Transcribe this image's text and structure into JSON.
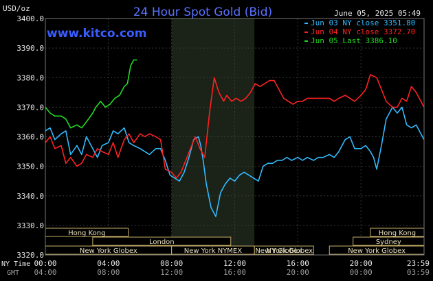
{
  "chart_data": {
    "type": "line",
    "title": "24 Hour Spot Gold (Bid)",
    "watermark": "www.kitco.com",
    "unit_label": "USD/oz",
    "date_label": "June 05, 2025 05:49",
    "ylim": [
      3320,
      3400
    ],
    "y_ticks": [
      "3400.0",
      "3390.0",
      "3380.0",
      "3370.0",
      "3360.0",
      "3350.0",
      "3340.0",
      "3330.0",
      "3320.0"
    ],
    "x_row_label_ny": "NY Time",
    "x_row_label_gmt": "GMT",
    "x_ticks_ny": [
      "00:00",
      "04:00",
      "08:00",
      "12:00",
      "16:00",
      "20:00",
      "23:59"
    ],
    "x_ticks_gmt": [
      "04:00",
      "08:00",
      "12:00",
      "16:00",
      "20:00",
      "00:00",
      "03:59"
    ],
    "shaded_period": [
      8.0,
      13.25
    ],
    "grid": true,
    "legend_position": "top-right",
    "sessions": [
      {
        "label": "Hong Kong",
        "row": 0,
        "start": 0.0,
        "end": 5.25
      },
      {
        "label": "Hong Kong",
        "row": 0,
        "start": 20.6,
        "end": 24.0
      },
      {
        "label": "London",
        "row": 1,
        "start": 3.0,
        "end": 11.75
      },
      {
        "label": "Sydney",
        "row": 1,
        "start": 19.5,
        "end": 24.0
      },
      {
        "label": "New York Globex",
        "row": 2,
        "start": 0.0,
        "end": 8.0
      },
      {
        "label": "New York NYMEX",
        "row": 2,
        "start": 8.0,
        "end": 13.25
      },
      {
        "label": "New York Globex",
        "row": 2,
        "start": 13.25,
        "end": 17.0
      },
      {
        "label": "NY Globex",
        "row": 2,
        "start": 13.25,
        "end": 17.0
      },
      {
        "label": "New York Globex",
        "row": 2,
        "start": 18.0,
        "end": 24.0
      }
    ],
    "series": [
      {
        "name": "Jun 03 NY close 3351.80",
        "color": "#33bbff",
        "x": [
          0,
          0.3,
          0.6,
          1,
          1.3,
          1.6,
          2,
          2.3,
          2.6,
          3,
          3.3,
          3.6,
          4,
          4.3,
          4.6,
          5,
          5.3,
          5.6,
          6,
          6.3,
          6.6,
          7,
          7.3,
          7.6,
          7.9,
          8.2,
          8.5,
          8.8,
          9.1,
          9.4,
          9.7,
          9.85,
          10,
          10.2,
          10.5,
          10.8,
          11.1,
          11.4,
          11.7,
          12,
          12.3,
          12.6,
          12.9,
          13.2,
          13.5,
          13.8,
          14.1,
          14.4,
          14.7,
          15,
          15.3,
          15.6,
          16,
          16.3,
          16.6,
          17,
          17.3,
          17.6,
          18,
          18.3,
          18.6,
          19,
          19.3,
          19.6,
          20,
          20.3,
          20.6,
          20.8,
          21,
          21.3,
          21.6,
          22,
          22.3,
          22.6,
          22.9,
          23.2,
          23.5,
          23.8,
          24
        ],
        "values": [
          3362,
          3363,
          3359,
          3361,
          3362,
          3354,
          3357,
          3354,
          3360,
          3356,
          3353,
          3357,
          3358,
          3362,
          3361,
          3363,
          3358,
          3357,
          3356,
          3355,
          3354,
          3356,
          3356,
          3352,
          3347,
          3346,
          3345,
          3348,
          3353,
          3359,
          3360,
          3357,
          3352,
          3344,
          3336,
          3333,
          3341,
          3344,
          3346,
          3345,
          3347,
          3348,
          3347,
          3346,
          3345,
          3350,
          3351,
          3351,
          3352,
          3352,
          3353,
          3352,
          3353,
          3352,
          3353,
          3352,
          3353,
          3353,
          3354,
          3353,
          3355,
          3359,
          3360,
          3356,
          3356,
          3357,
          3355,
          3353,
          3349,
          3357,
          3366,
          3370,
          3368,
          3370,
          3364,
          3363,
          3364,
          3361,
          3359
        ]
      },
      {
        "name": "Jun 04 NY close 3372.70",
        "color": "#ff2222",
        "x": [
          0,
          0.3,
          0.6,
          1,
          1.3,
          1.6,
          2,
          2.3,
          2.6,
          3,
          3.3,
          3.6,
          4,
          4.3,
          4.6,
          5,
          5.3,
          5.6,
          6,
          6.3,
          6.6,
          7,
          7.3,
          7.6,
          8,
          8.3,
          8.6,
          8.9,
          9.2,
          9.5,
          9.8,
          10.1,
          10.4,
          10.7,
          11,
          11.3,
          11.5,
          11.8,
          12.1,
          12.4,
          12.7,
          13,
          13.3,
          13.6,
          13.9,
          14.2,
          14.5,
          14.8,
          15.1,
          15.4,
          15.7,
          16,
          16.3,
          16.6,
          17,
          17.3,
          17.6,
          18,
          18.3,
          18.6,
          19,
          19.3,
          19.6,
          20,
          20.3,
          20.6,
          21,
          21.3,
          21.6,
          22,
          22.3,
          22.6,
          22.9,
          23.2,
          23.5,
          23.8,
          24
        ],
        "values": [
          3358,
          3360,
          3356,
          3357,
          3351,
          3353,
          3350,
          3351,
          3354,
          3353,
          3356,
          3355,
          3354,
          3358,
          3353,
          3359,
          3361,
          3358,
          3361,
          3360,
          3361,
          3360,
          3359,
          3349,
          3348,
          3346,
          3348,
          3352,
          3356,
          3360,
          3356,
          3353,
          3368,
          3380,
          3375,
          3372,
          3374,
          3372,
          3373,
          3372,
          3373,
          3375,
          3378,
          3377,
          3378,
          3379,
          3379,
          3376,
          3373,
          3372,
          3371,
          3372,
          3372,
          3373,
          3373,
          3373,
          3373,
          3373,
          3372,
          3373,
          3374,
          3373,
          3372,
          3374,
          3376,
          3381,
          3380,
          3376,
          3372,
          3370,
          3370,
          3373,
          3372,
          3377,
          3375,
          3372,
          3370
        ]
      },
      {
        "name": "Jun 05 Last 3386.10",
        "color": "#22dd22",
        "x": [
          0,
          0.3,
          0.6,
          1,
          1.3,
          1.6,
          2,
          2.3,
          2.6,
          3,
          3.2,
          3.5,
          3.8,
          4.1,
          4.4,
          4.7,
          5,
          5.2,
          5.4,
          5.6,
          5.81
        ],
        "values": [
          3370,
          3368,
          3367,
          3367,
          3366,
          3363,
          3364,
          3363,
          3365,
          3368,
          3370,
          3372,
          3370,
          3371,
          3373,
          3374,
          3377,
          3378,
          3384,
          3386,
          3386
        ]
      }
    ]
  }
}
